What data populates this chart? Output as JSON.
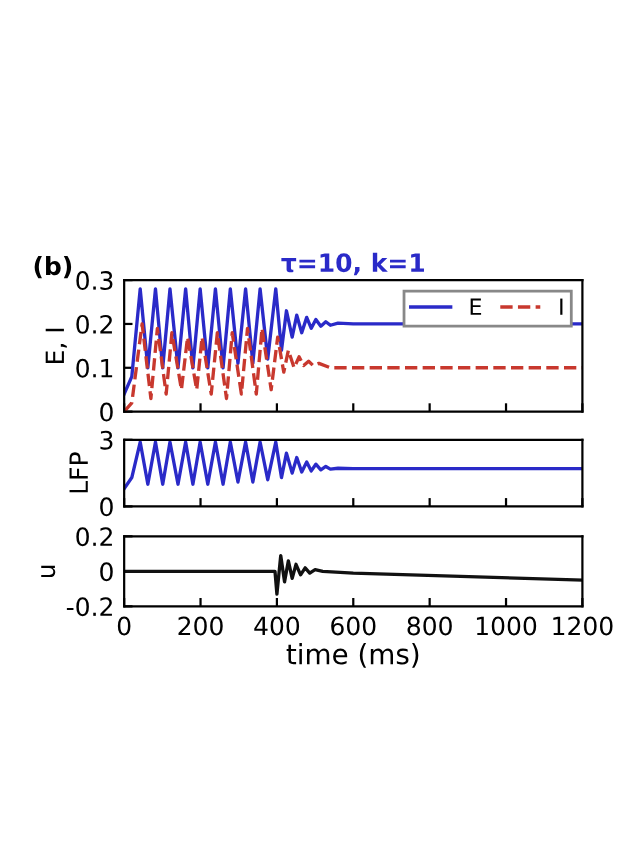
{
  "chart_data": [
    {
      "type": "line",
      "title": "τ=10, k=1",
      "ylabel": "E, I",
      "annotations": [
        "(b)"
      ],
      "xlim": [
        0,
        1200
      ],
      "xticks": [
        0,
        200,
        400,
        600,
        800,
        1000,
        1200
      ],
      "ylim": [
        0,
        0.3
      ],
      "yticks": [
        0,
        0.1,
        0.2,
        0.3
      ],
      "tick_labels": "y",
      "legend": "top right",
      "grid": false,
      "series": [
        {
          "name": "E",
          "color": "#2a2ac8",
          "line_style": "solid",
          "x": [
            0,
            20,
            42,
            62,
            82,
            101,
            120,
            141,
            161,
            180,
            199,
            219,
            239,
            259,
            278,
            298,
            318,
            337,
            356,
            376,
            397,
            412,
            425,
            440,
            452,
            465,
            478,
            490,
            502,
            515,
            528,
            540,
            560,
            600,
            1200
          ],
          "values": [
            0.04,
            0.08,
            0.28,
            0.1,
            0.28,
            0.1,
            0.28,
            0.1,
            0.28,
            0.1,
            0.28,
            0.1,
            0.28,
            0.1,
            0.28,
            0.11,
            0.28,
            0.11,
            0.28,
            0.12,
            0.28,
            0.14,
            0.23,
            0.17,
            0.22,
            0.18,
            0.215,
            0.19,
            0.21,
            0.195,
            0.205,
            0.197,
            0.202,
            0.2,
            0.2
          ]
        },
        {
          "name": "I",
          "color": "#c8382e",
          "line_style": "dashed",
          "x": [
            0,
            20,
            47,
            70,
            87,
            110,
            125,
            150,
            166,
            190,
            204,
            228,
            244,
            268,
            283,
            307,
            323,
            346,
            361,
            385,
            402,
            418,
            430,
            445,
            458,
            470,
            483,
            495,
            510,
            540,
            600,
            1200
          ],
          "values": [
            0.0,
            0.02,
            0.2,
            0.03,
            0.19,
            0.04,
            0.18,
            0.05,
            0.17,
            0.05,
            0.17,
            0.04,
            0.18,
            0.03,
            0.18,
            0.04,
            0.19,
            0.04,
            0.19,
            0.05,
            0.17,
            0.09,
            0.14,
            0.1,
            0.125,
            0.105,
            0.115,
            0.105,
            0.11,
            0.1,
            0.1,
            0.1
          ]
        }
      ]
    },
    {
      "type": "line",
      "ylabel": "LFP",
      "xlim": [
        0,
        1200
      ],
      "xticks": [
        0,
        200,
        400,
        600,
        800,
        1000,
        1200
      ],
      "ylim": [
        0,
        3
      ],
      "yticks": [
        0,
        3
      ],
      "tick_labels": "y",
      "grid": false,
      "series": [
        {
          "color": "#2a2ac8",
          "line_style": "solid",
          "x": [
            0,
            20,
            42,
            62,
            82,
            101,
            120,
            141,
            161,
            180,
            199,
            219,
            239,
            259,
            278,
            298,
            318,
            337,
            356,
            376,
            397,
            412,
            425,
            440,
            452,
            465,
            478,
            490,
            502,
            515,
            528,
            540,
            560,
            600,
            1200
          ],
          "values": [
            0.8,
            1.3,
            2.9,
            1.0,
            2.9,
            1.0,
            2.9,
            1.0,
            2.9,
            1.0,
            2.9,
            1.0,
            2.9,
            1.0,
            2.9,
            1.1,
            2.9,
            1.1,
            2.9,
            1.2,
            2.9,
            1.3,
            2.4,
            1.5,
            2.2,
            1.55,
            2.0,
            1.6,
            1.9,
            1.65,
            1.8,
            1.68,
            1.72,
            1.7,
            1.7
          ]
        }
      ]
    },
    {
      "type": "line",
      "xlabel": "time (ms)",
      "ylabel": "u",
      "xlim": [
        0,
        1200
      ],
      "xticks": [
        0,
        200,
        400,
        600,
        800,
        1000,
        1200
      ],
      "ylim": [
        -0.2,
        0.2
      ],
      "yticks": [
        {
          "value": -0.2,
          "label": "-0.2"
        },
        0,
        0.2
      ],
      "grid": false,
      "series": [
        {
          "color": "#111111",
          "line_style": "solid",
          "x": [
            0,
            395,
            400,
            410,
            420,
            430,
            440,
            450,
            462,
            474,
            486,
            500,
            520,
            600,
            1200
          ],
          "values": [
            0.0,
            0.0,
            -0.13,
            0.09,
            -0.06,
            0.06,
            -0.04,
            0.04,
            -0.02,
            0.02,
            -0.01,
            0.01,
            0.0,
            -0.01,
            -0.05
          ]
        }
      ]
    }
  ]
}
